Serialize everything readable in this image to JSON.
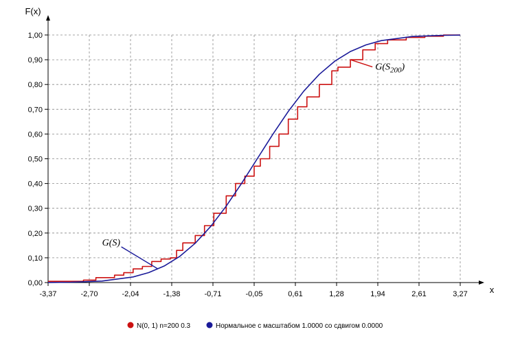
{
  "chart_data": {
    "type": "line",
    "ylabel": "F(x)",
    "xlabel": "x",
    "xlim": [
      -3.37,
      3.27
    ],
    "ylim": [
      0,
      1
    ],
    "x_ticks": [
      "-3,37",
      "-2,70",
      "-2,04",
      "-1,38",
      "-0,71",
      "-0,05",
      "0,61",
      "1,28",
      "1,94",
      "2,61",
      "3,27"
    ],
    "y_ticks": [
      "0,00",
      "0,10",
      "0,20",
      "0,30",
      "0,40",
      "0,50",
      "0,60",
      "0,70",
      "0,80",
      "0,90",
      "1,00"
    ],
    "grid": true,
    "legend_position": "bottom",
    "series": [
      {
        "name": "N(0, 1) n=200 0.3",
        "color": "#cc1111",
        "kind": "empirical-cdf",
        "x": [
          -3.37,
          -2.8,
          -2.6,
          -2.3,
          -2.15,
          -2.0,
          -1.85,
          -1.7,
          -1.55,
          -1.4,
          -1.3,
          -1.2,
          -1.0,
          -0.85,
          -0.7,
          -0.5,
          -0.35,
          -0.2,
          -0.05,
          0.05,
          0.2,
          0.35,
          0.5,
          0.65,
          0.8,
          1.0,
          1.2,
          1.3,
          1.5,
          1.7,
          1.9,
          2.1,
          2.4,
          2.7,
          3.0,
          3.27
        ],
        "y": [
          0.005,
          0.01,
          0.02,
          0.03,
          0.04,
          0.055,
          0.065,
          0.085,
          0.095,
          0.1,
          0.13,
          0.16,
          0.19,
          0.23,
          0.28,
          0.35,
          0.4,
          0.43,
          0.47,
          0.5,
          0.55,
          0.6,
          0.66,
          0.71,
          0.75,
          0.8,
          0.855,
          0.87,
          0.9,
          0.94,
          0.965,
          0.98,
          0.99,
          0.995,
          1.0,
          1.0
        ]
      },
      {
        "name": "Нормальное с масштабом 1.0000 со сдвигом 0.0000",
        "color": "#1a1a99",
        "kind": "normal-cdf",
        "x": [
          -3.37,
          -3.0,
          -2.5,
          -2.0,
          -1.75,
          -1.5,
          -1.25,
          -1.0,
          -0.75,
          -0.5,
          -0.25,
          0.0,
          0.25,
          0.5,
          0.75,
          1.0,
          1.25,
          1.5,
          1.75,
          2.0,
          2.5,
          3.0,
          3.27
        ],
        "y": [
          0.0004,
          0.0013,
          0.0062,
          0.0228,
          0.0401,
          0.0668,
          0.1056,
          0.1587,
          0.2266,
          0.3085,
          0.4013,
          0.5,
          0.5987,
          0.6915,
          0.7734,
          0.8413,
          0.8944,
          0.9332,
          0.9599,
          0.9772,
          0.9938,
          0.9987,
          0.9995
        ]
      }
    ],
    "annotations": [
      {
        "label": "G(S)",
        "x": -2.5,
        "y": 0.15,
        "points_to_x": -1.6,
        "points_to_y": 0.055,
        "color": "#1a1a99"
      },
      {
        "label": "G(S",
        "subscript": "200",
        "suffix": ")",
        "x": 1.9,
        "y": 0.86,
        "points_to_x": 1.5,
        "points_to_y": 0.9,
        "color": "#cc1111"
      }
    ]
  }
}
